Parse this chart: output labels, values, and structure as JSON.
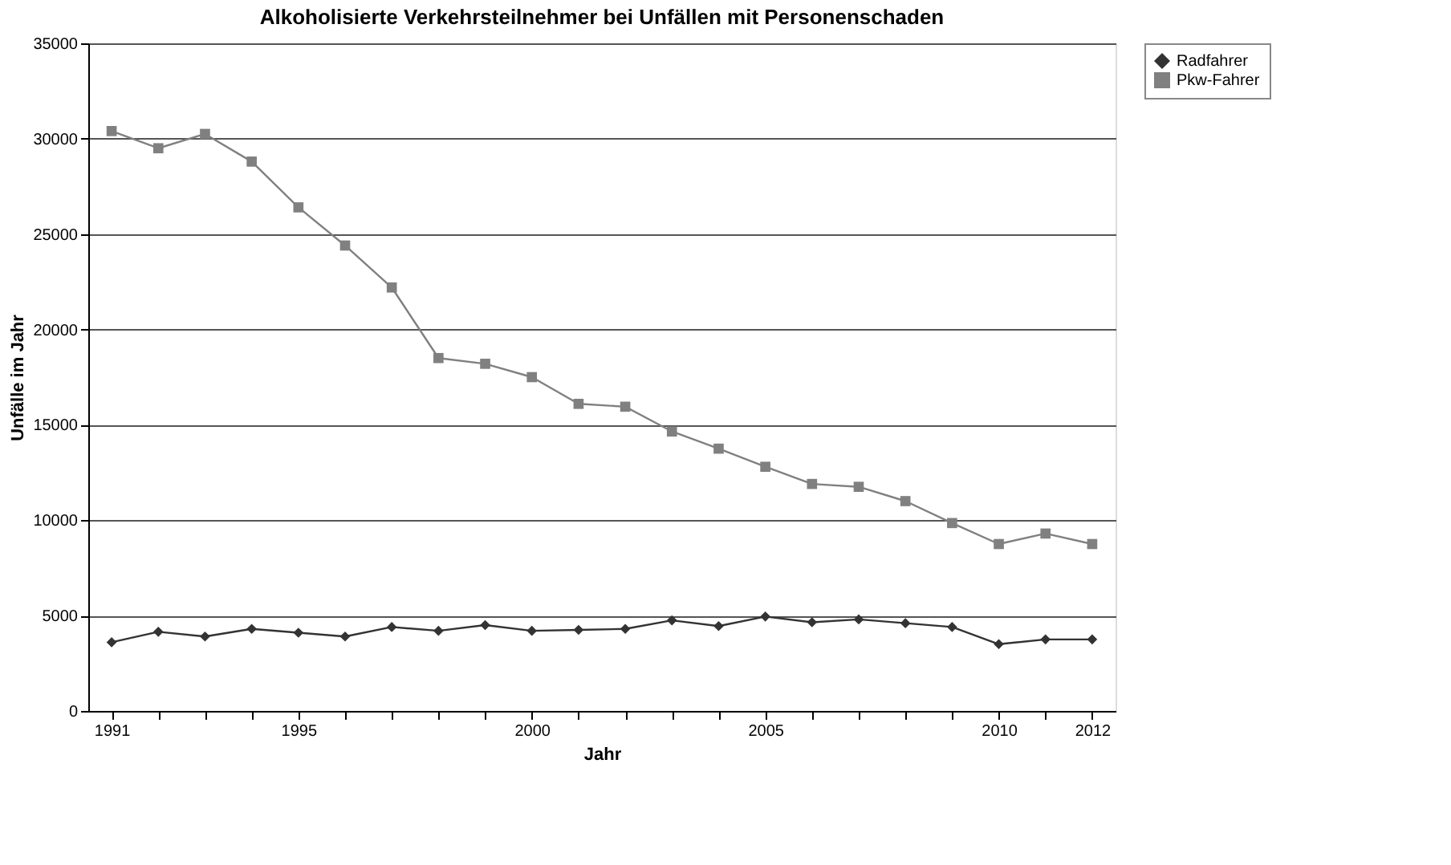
{
  "chart_data": {
    "type": "line",
    "title": "Alkoholisierte Verkehrsteilnehmer bei Unfällen mit Personenschaden",
    "xlabel": "Jahr",
    "ylabel": "Unfälle im Jahr",
    "categories": [
      "1991",
      null,
      null,
      null,
      "1995",
      null,
      null,
      null,
      null,
      "2000",
      null,
      null,
      null,
      null,
      "2005",
      null,
      null,
      null,
      null,
      "2010",
      null,
      "2012"
    ],
    "series": [
      {
        "name": "Radfahrer",
        "color": "#333333",
        "marker": "diamond",
        "values": [
          3600,
          4150,
          3900,
          4300,
          4100,
          3900,
          4400,
          4200,
          4500,
          4200,
          4250,
          4300,
          4750,
          4450,
          4950,
          4650,
          4800,
          4600,
          4400,
          3500,
          3750,
          3750
        ]
      },
      {
        "name": "Pkw-Fahrer",
        "color": "#808080",
        "marker": "square",
        "values": [
          30400,
          29500,
          30250,
          28800,
          26400,
          24400,
          22200,
          18500,
          18200,
          17500,
          16100,
          15950,
          14650,
          13750,
          12800,
          11900,
          11750,
          11000,
          9850,
          8750,
          9300,
          8750
        ]
      }
    ],
    "ylim": [
      0,
      35000
    ],
    "yticks": [
      0,
      5000,
      10000,
      15000,
      20000,
      25000,
      30000,
      35000
    ],
    "grid": "y",
    "legend": "right",
    "line_style": "solid"
  }
}
